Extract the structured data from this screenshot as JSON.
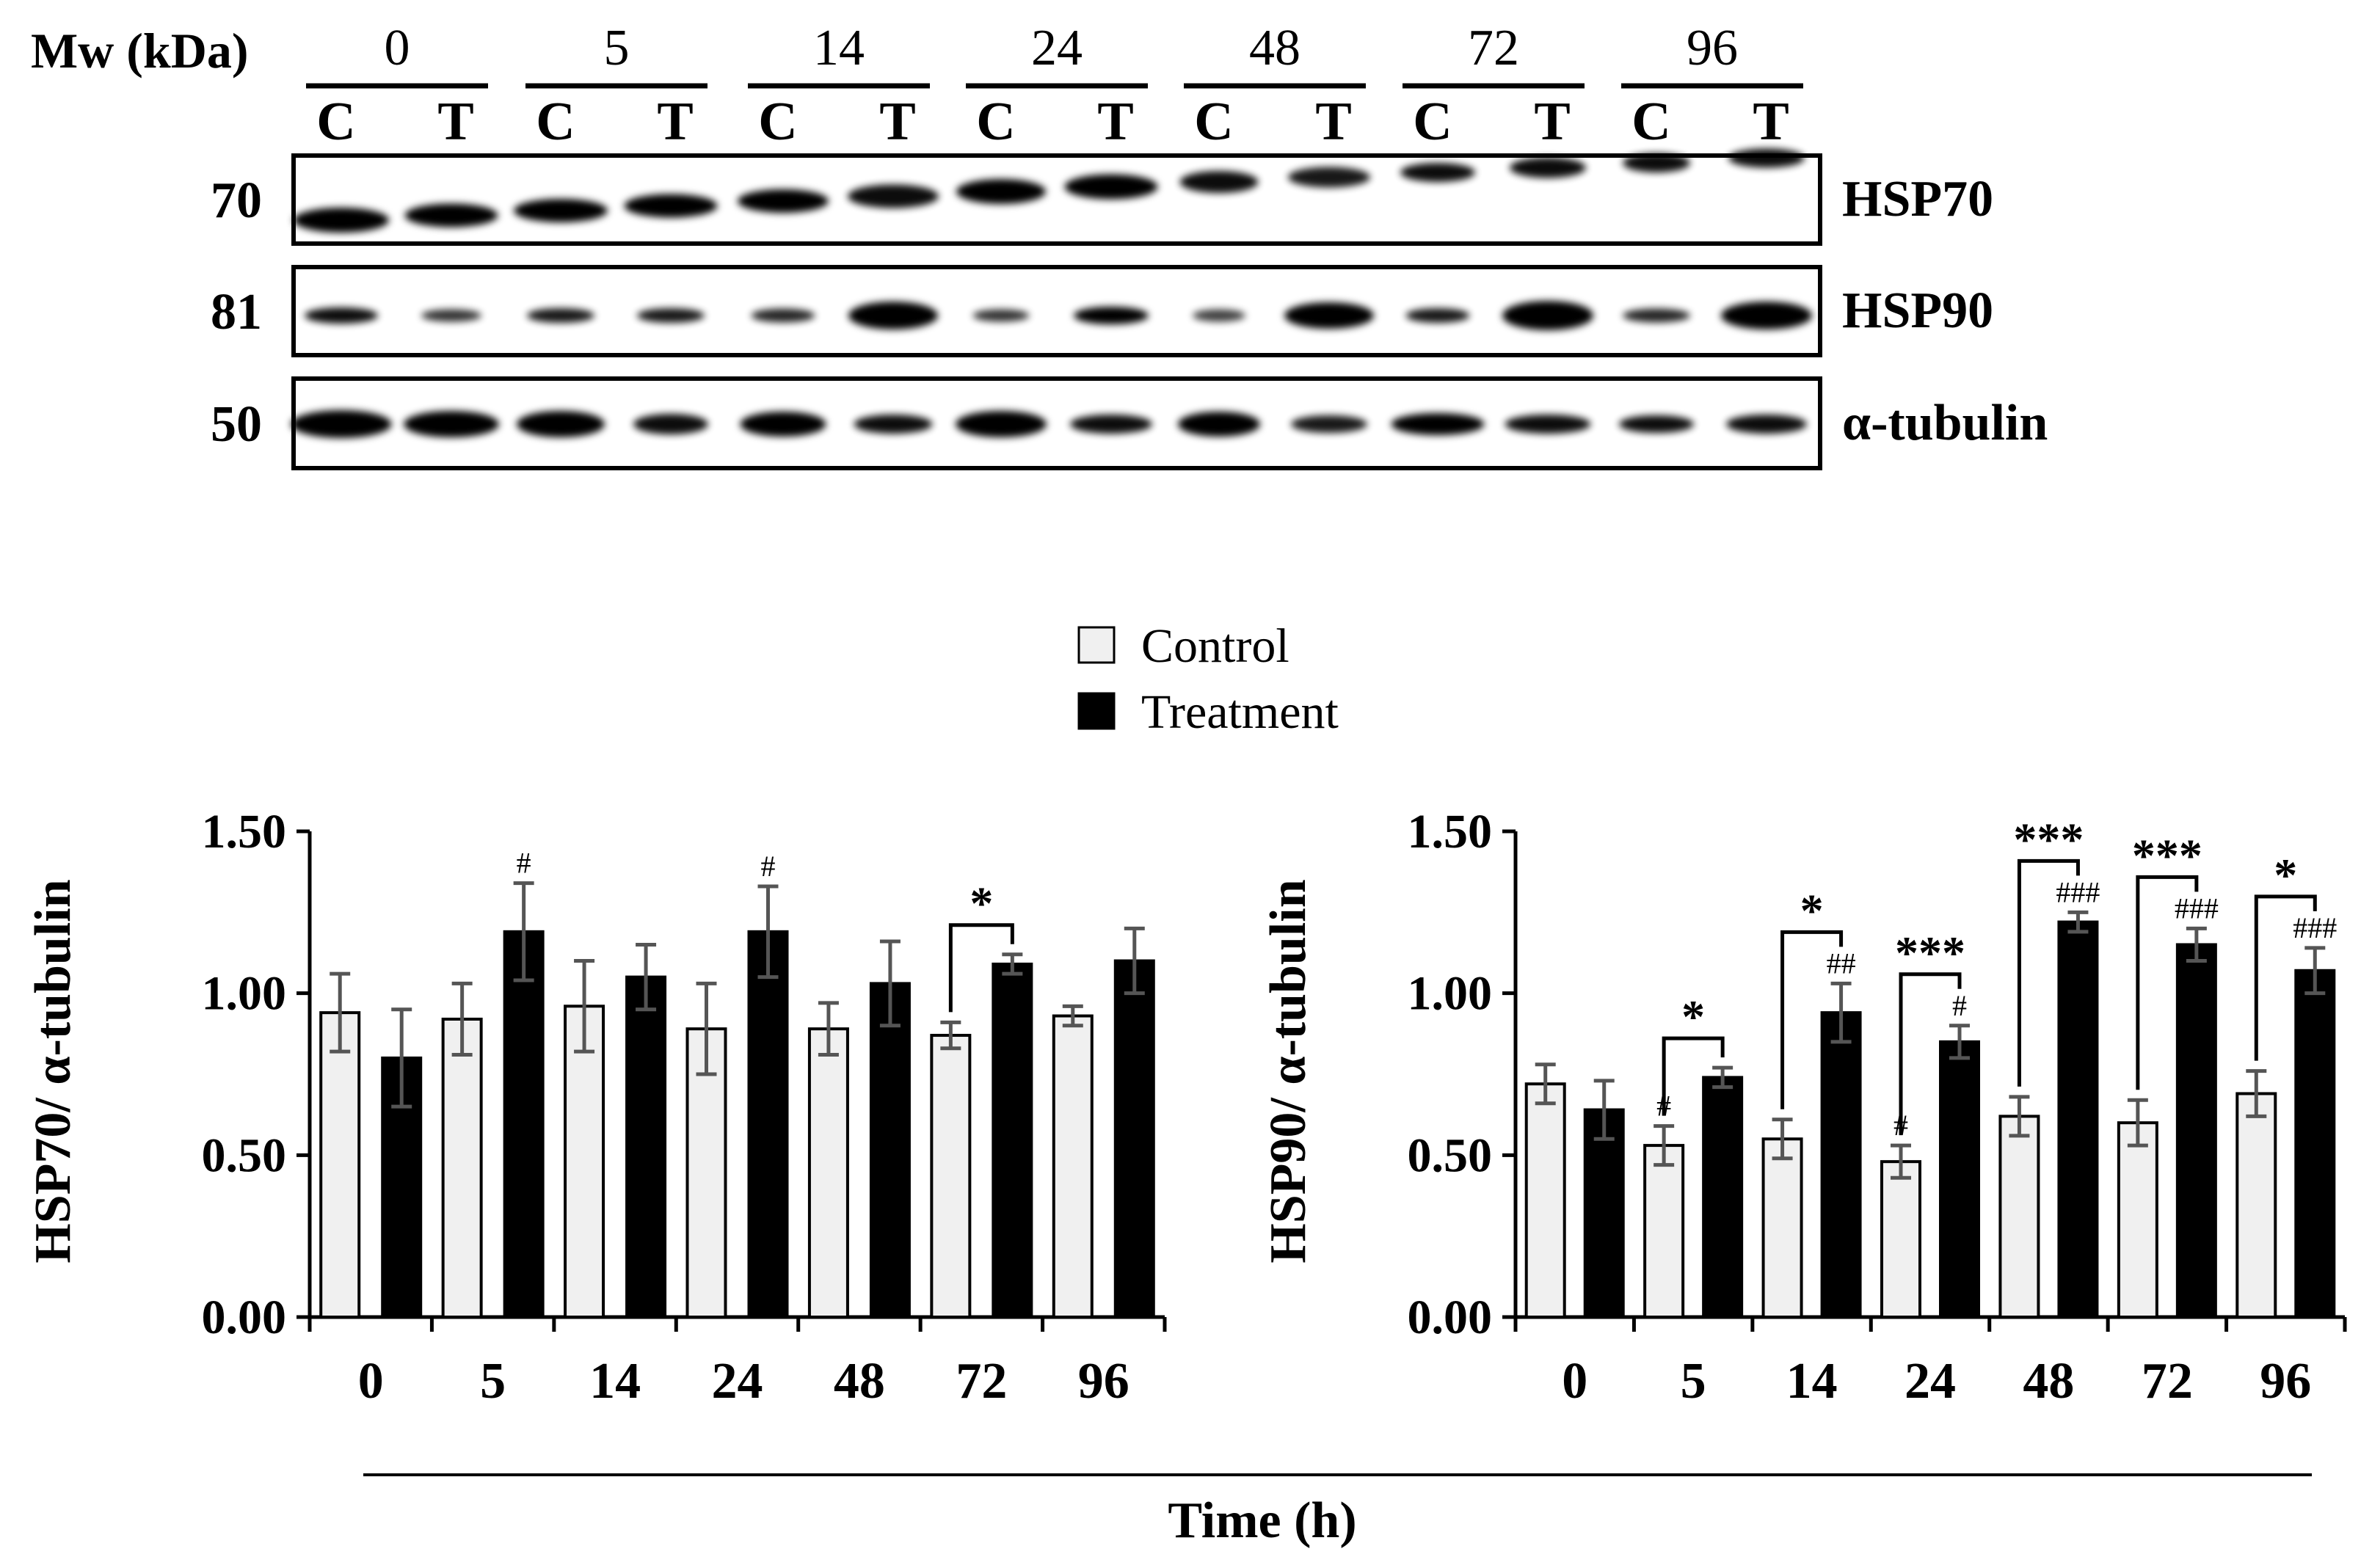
{
  "blot": {
    "mw_label": "Mw (kDa)",
    "timepoints": [
      "0",
      "5",
      "14",
      "24",
      "48",
      "72",
      "96"
    ],
    "lane_labels": [
      "C",
      "T"
    ],
    "rows": [
      {
        "mw": "70",
        "protein": "HSP70"
      },
      {
        "mw": "81",
        "protein": "HSP90"
      },
      {
        "mw": "50",
        "protein": "α-tubulin"
      }
    ]
  },
  "legend": {
    "items": [
      {
        "label": "Control",
        "color": "#f0f0f0"
      },
      {
        "label": "Treatment",
        "color": "#000000"
      }
    ]
  },
  "xaxis_title": "Time (h)",
  "colors": {
    "control": "#f0f0f0",
    "treatment": "#000000",
    "error_bar": "#555555"
  },
  "chart_data": [
    {
      "type": "bar",
      "title": "",
      "xlabel": "Time (h)",
      "ylabel": "HSP70/ α-tubulin",
      "ylim": [
        0,
        1.5
      ],
      "yticks": [
        0,
        0.5,
        1.0,
        1.5
      ],
      "ytick_labels": [
        "0.00",
        "0.50",
        "1.00",
        "1.50"
      ],
      "categories": [
        "0",
        "5",
        "14",
        "24",
        "48",
        "72",
        "96"
      ],
      "series": [
        {
          "name": "Control",
          "values": [
            0.94,
            0.92,
            0.96,
            0.89,
            0.89,
            0.87,
            0.93
          ],
          "errors": [
            0.12,
            0.11,
            0.14,
            0.14,
            0.08,
            0.04,
            0.03
          ]
        },
        {
          "name": "Treatment",
          "values": [
            0.8,
            1.19,
            1.05,
            1.19,
            1.03,
            1.09,
            1.1
          ],
          "errors": [
            0.15,
            0.15,
            0.1,
            0.14,
            0.13,
            0.03,
            0.1
          ]
        }
      ],
      "annotations": [
        {
          "category": "5",
          "series": "Treatment",
          "text": "#"
        },
        {
          "category": "24",
          "series": "Treatment",
          "text": "#"
        }
      ],
      "brackets": [
        {
          "category": "72",
          "text": "*"
        }
      ]
    },
    {
      "type": "bar",
      "title": "",
      "xlabel": "Time (h)",
      "ylabel": "HSP90/ α-tubulin",
      "ylim": [
        0,
        1.5
      ],
      "yticks": [
        0,
        0.5,
        1.0,
        1.5
      ],
      "ytick_labels": [
        "0.00",
        "0.50",
        "1.00",
        "1.50"
      ],
      "categories": [
        "0",
        "5",
        "14",
        "24",
        "48",
        "72",
        "96"
      ],
      "series": [
        {
          "name": "Control",
          "values": [
            0.72,
            0.53,
            0.55,
            0.48,
            0.62,
            0.6,
            0.69
          ],
          "errors": [
            0.06,
            0.06,
            0.06,
            0.05,
            0.06,
            0.07,
            0.07
          ]
        },
        {
          "name": "Treatment",
          "values": [
            0.64,
            0.74,
            0.94,
            0.85,
            1.22,
            1.15,
            1.07
          ],
          "errors": [
            0.09,
            0.03,
            0.09,
            0.05,
            0.03,
            0.05,
            0.07
          ]
        }
      ],
      "annotations": [
        {
          "category": "5",
          "series": "Control",
          "text": "#"
        },
        {
          "category": "24",
          "series": "Control",
          "text": "#"
        },
        {
          "category": "14",
          "series": "Treatment",
          "text": "##"
        },
        {
          "category": "24",
          "series": "Treatment",
          "text": "#"
        },
        {
          "category": "48",
          "series": "Treatment",
          "text": "###"
        },
        {
          "category": "72",
          "series": "Treatment",
          "text": "###"
        },
        {
          "category": "96",
          "series": "Treatment",
          "text": "###"
        }
      ],
      "brackets": [
        {
          "category": "5",
          "text": "*"
        },
        {
          "category": "14",
          "text": "*"
        },
        {
          "category": "24",
          "text": "***"
        },
        {
          "category": "48",
          "text": "***"
        },
        {
          "category": "72",
          "text": "***"
        },
        {
          "category": "96",
          "text": "*"
        }
      ]
    }
  ]
}
